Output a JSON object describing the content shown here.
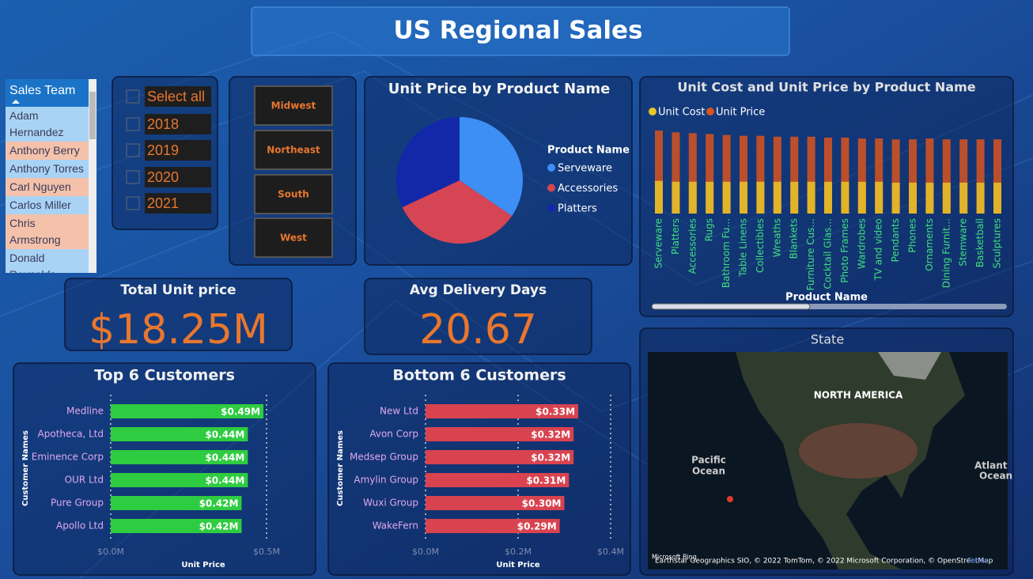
{
  "header": {
    "title": "US Regional Sales"
  },
  "sales_team": {
    "title": "Sales Team",
    "items": [
      "Adam Hernandez",
      "Anthony Berry",
      "Anthony Torres",
      "Carl Nguyen",
      "Carlos Miller",
      "Chris Armstrong",
      "Donald Reynolds"
    ]
  },
  "years": [
    "Select all",
    "2018",
    "2019",
    "2020",
    "2021"
  ],
  "regions": [
    "Midwest",
    "Northeast",
    "South",
    "West"
  ],
  "cards": [
    {
      "title": "Total Unit price",
      "value": "$18.25M"
    },
    {
      "title": "Avg Delivery Days",
      "value": "20.67"
    }
  ],
  "map": {
    "title": "State",
    "labels": [
      "NORTH AMERICA",
      "Pacific",
      "Ocean",
      "Atlant",
      "Ocean"
    ],
    "attribution": "Earthstar Geographics SIO, © 2022 TomTom, © 2022 Microsoft Corporation, © OpenStreetMap",
    "terms": "Terms",
    "brand": "Microsoft Bing"
  },
  "chart_data": [
    {
      "type": "pie",
      "title": "Unit Price by Product Name",
      "legend_title": "Product Name",
      "categories": [
        "Serveware",
        "Accessories",
        "Platters"
      ],
      "values": [
        34.5,
        33.5,
        32
      ],
      "colors": [
        "#3d8ef5",
        "#d64553",
        "#1228a8"
      ]
    },
    {
      "type": "bar",
      "title": "Unit Cost and Unit Price by Product Name",
      "x_label": "Product Name",
      "categories": [
        "Serveware",
        "Platters",
        "Accessories",
        "Rugs",
        "Bathroom Fu...",
        "Table Linens",
        "Collectibles",
        "Wreaths",
        "Blankets",
        "Furniture Cus...",
        "Cocktail Glas...",
        "Photo Frames",
        "Wardrobes",
        "TV and video",
        "Pendants",
        "Phones",
        "Ornaments",
        "Dining Furnit...",
        "Stemware",
        "Basketball",
        "Sculptures"
      ],
      "series": [
        {
          "name": "Unit Cost",
          "color": "#e8c52a",
          "values": [
            0.185,
            0.18,
            0.18,
            0.18,
            0.18,
            0.18,
            0.18,
            0.18,
            0.18,
            0.18,
            0.18,
            0.18,
            0.18,
            0.18,
            0.175,
            0.175,
            0.175,
            0.175,
            0.175,
            0.175,
            0.175
          ]
        },
        {
          "name": "Unit Price",
          "color": "#d9531e",
          "values": [
            0.47,
            0.46,
            0.455,
            0.45,
            0.445,
            0.44,
            0.44,
            0.435,
            0.435,
            0.435,
            0.43,
            0.43,
            0.425,
            0.425,
            0.42,
            0.42,
            0.425,
            0.42,
            0.42,
            0.42,
            0.42
          ]
        }
      ]
    },
    {
      "type": "hbar",
      "title": "Top 6 Customers",
      "x_label": "Unit Price",
      "y_label": "Customer Names",
      "categories": [
        "Medline",
        "Apotheca, Ltd",
        "Eminence Corp",
        "OUR Ltd",
        "Pure Group",
        "Apollo Ltd"
      ],
      "values": [
        0.49,
        0.44,
        0.44,
        0.44,
        0.42,
        0.42
      ],
      "value_labels": [
        "$0.49M",
        "$0.44M",
        "$0.44M",
        "$0.44M",
        "$0.42M",
        "$0.42M"
      ],
      "color": "#2ecc40",
      "xlim": [
        0,
        0.5
      ],
      "xticks": [
        {
          "value": 0,
          "label": "$0.0M"
        },
        {
          "value": 0.5,
          "label": "$0.5M"
        }
      ]
    },
    {
      "type": "hbar",
      "title": "Bottom 6 Customers",
      "x_label": "Unit Price",
      "y_label": "Customer Names",
      "categories": [
        "New Ltd",
        "Avon Corp",
        "Medsep Group",
        "Amylin Group",
        "Wuxi Group",
        "WakeFern"
      ],
      "values": [
        0.33,
        0.32,
        0.32,
        0.31,
        0.3,
        0.29
      ],
      "value_labels": [
        "$0.33M",
        "$0.32M",
        "$0.32M",
        "$0.31M",
        "$0.30M",
        "$0.29M"
      ],
      "color": "#d8434f",
      "xlim": [
        0,
        0.4
      ],
      "xticks": [
        {
          "value": 0,
          "label": "$0.0M"
        },
        {
          "value": 0.2,
          "label": "$0.2M"
        },
        {
          "value": 0.4,
          "label": "$0.4M"
        }
      ]
    }
  ]
}
